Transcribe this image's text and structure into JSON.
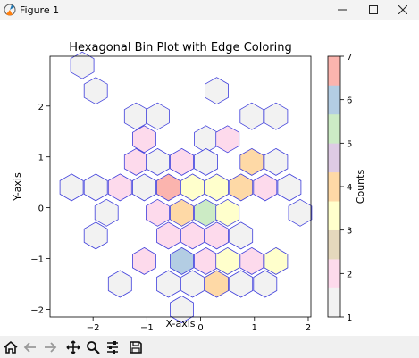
{
  "window": {
    "title": "Figure 1",
    "icon": "matplotlib-icon",
    "controls": [
      "minimize-icon",
      "maximize-icon",
      "close-icon"
    ]
  },
  "toolbar": {
    "buttons": [
      "home-icon",
      "back-arrow-icon",
      "forward-arrow-icon",
      "pan-icon",
      "zoom-icon",
      "configure-subplots-icon",
      "save-icon"
    ]
  },
  "chart_data": {
    "type": "heatmap",
    "subtype": "hexbin",
    "title": "Hexagonal Bin Plot with Edge Coloring",
    "xlabel": "X-axis",
    "ylabel": "Y-axis",
    "xlim": [
      -2.8,
      2.05
    ],
    "ylim": [
      -2.15,
      2.98
    ],
    "xticks": [
      -2,
      -1,
      0,
      1,
      2
    ],
    "yticks": [
      -2,
      -1,
      0,
      1,
      2
    ],
    "grid": false,
    "colormap": "Pastel1",
    "edgecolor": "#3f3fdc",
    "colorbar": {
      "label": "Counts",
      "ticks": [
        1,
        2,
        3,
        4,
        5,
        6,
        7
      ],
      "min": 1,
      "max": 7,
      "colors": [
        "#f2f2f2",
        "#fddaec",
        "#e5d8bd",
        "#ffffcc",
        "#fed9a6",
        "#decbe4",
        "#ccebc5",
        "#b3cde3",
        "#fbb4ae"
      ]
    },
    "bins": [
      {
        "x": -2.2,
        "y": 2.8,
        "count": 1
      },
      {
        "x": -1.95,
        "y": 2.3,
        "count": 1
      },
      {
        "x": -1.2,
        "y": 1.8,
        "count": 1
      },
      {
        "x": -0.8,
        "y": 1.8,
        "count": 1
      },
      {
        "x": 0.3,
        "y": 2.3,
        "count": 1
      },
      {
        "x": 0.95,
        "y": 1.8,
        "count": 1
      },
      {
        "x": 1.4,
        "y": 1.8,
        "count": 1
      },
      {
        "x": -1.05,
        "y": 1.35,
        "count": 2
      },
      {
        "x": 0.1,
        "y": 1.35,
        "count": 1
      },
      {
        "x": 0.5,
        "y": 1.35,
        "count": 2
      },
      {
        "x": -1.2,
        "y": 0.9,
        "count": 2
      },
      {
        "x": -0.8,
        "y": 0.9,
        "count": 1
      },
      {
        "x": -0.35,
        "y": 0.9,
        "count": 2
      },
      {
        "x": 0.1,
        "y": 0.9,
        "count": 1
      },
      {
        "x": 0.95,
        "y": 0.9,
        "count": 4
      },
      {
        "x": 1.4,
        "y": 0.9,
        "count": 1
      },
      {
        "x": -2.4,
        "y": 0.4,
        "count": 1
      },
      {
        "x": -1.95,
        "y": 0.4,
        "count": 1
      },
      {
        "x": -1.5,
        "y": 0.4,
        "count": 2
      },
      {
        "x": -1.05,
        "y": 0.4,
        "count": 1
      },
      {
        "x": -0.6,
        "y": 0.4,
        "count": 7
      },
      {
        "x": -0.15,
        "y": 0.4,
        "count": 3
      },
      {
        "x": 0.3,
        "y": 0.4,
        "count": 3
      },
      {
        "x": 0.75,
        "y": 0.4,
        "count": 4
      },
      {
        "x": 1.2,
        "y": 0.4,
        "count": 2
      },
      {
        "x": 1.65,
        "y": 0.4,
        "count": 1
      },
      {
        "x": -1.75,
        "y": -0.1,
        "count": 1
      },
      {
        "x": -0.8,
        "y": -0.1,
        "count": 2
      },
      {
        "x": -0.35,
        "y": -0.1,
        "count": 4
      },
      {
        "x": 0.1,
        "y": -0.1,
        "count": 5
      },
      {
        "x": 0.5,
        "y": -0.1,
        "count": 3
      },
      {
        "x": 1.85,
        "y": -0.1,
        "count": 1
      },
      {
        "x": -1.95,
        "y": -0.55,
        "count": 1
      },
      {
        "x": -0.6,
        "y": -0.55,
        "count": 2
      },
      {
        "x": -0.15,
        "y": -0.55,
        "count": 2
      },
      {
        "x": 0.3,
        "y": -0.55,
        "count": 2
      },
      {
        "x": 0.75,
        "y": -0.55,
        "count": 1
      },
      {
        "x": -1.05,
        "y": -1.05,
        "count": 2
      },
      {
        "x": -0.35,
        "y": -1.05,
        "count": 6
      },
      {
        "x": 0.1,
        "y": -1.05,
        "count": 2
      },
      {
        "x": 0.5,
        "y": -1.05,
        "count": 3
      },
      {
        "x": 0.95,
        "y": -1.05,
        "count": 2
      },
      {
        "x": 1.4,
        "y": -1.05,
        "count": 3
      },
      {
        "x": -1.5,
        "y": -1.5,
        "count": 1
      },
      {
        "x": -0.6,
        "y": -1.5,
        "count": 1
      },
      {
        "x": -0.15,
        "y": -1.5,
        "count": 1
      },
      {
        "x": 0.3,
        "y": -1.5,
        "count": 4
      },
      {
        "x": 0.75,
        "y": -1.5,
        "count": 1
      },
      {
        "x": 1.2,
        "y": -1.5,
        "count": 1
      },
      {
        "x": -0.35,
        "y": -2.0,
        "count": 1
      }
    ]
  }
}
